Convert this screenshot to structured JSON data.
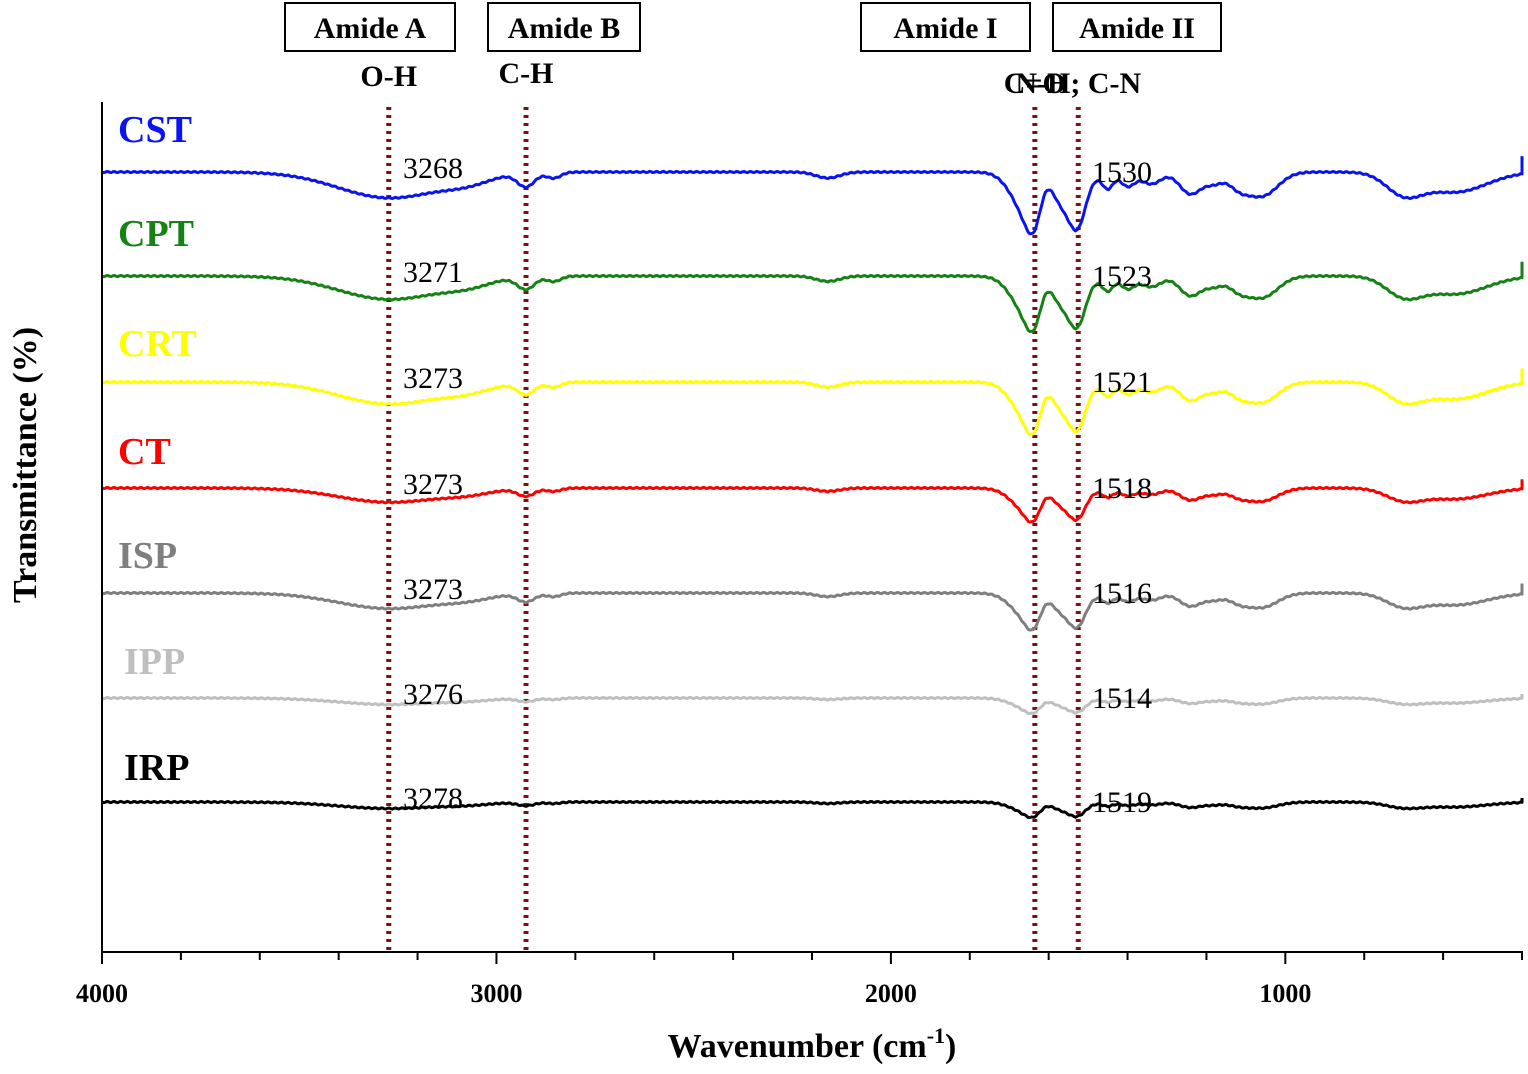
{
  "chart_data": {
    "type": "line",
    "title": "",
    "xlabel": "Wavenumber (cm",
    "xlabel_sup": "-1",
    "xlabel_close": ")",
    "ylabel": "Transmittance (%)",
    "xlim": [
      4000,
      400
    ],
    "x_ticks": [
      {
        "value": 4000,
        "label": "4000"
      },
      {
        "value": 3000,
        "label": "3000"
      },
      {
        "value": 2000,
        "label": "2000"
      },
      {
        "value": 1000,
        "label": "1000"
      }
    ],
    "markers": [
      {
        "value": 3273,
        "box_label": "Amide A",
        "bond_label": "O-H"
      },
      {
        "value": 2925,
        "box_label": "Amide B",
        "bond_label": "C-H"
      },
      {
        "value": 1635,
        "box_label": "Amide I",
        "bond_label": "C=O"
      },
      {
        "value": 1525,
        "box_label": "Amide II",
        "bond_label": "N-H; C-N"
      }
    ],
    "series": [
      {
        "name": "CST",
        "color": "#0a14f0",
        "amide_a_peak": "3268",
        "amide_ii_peak": "1530",
        "scale": 1.0
      },
      {
        "name": "CPT",
        "color": "#168216",
        "amide_a_peak": "3271",
        "amide_ii_peak": "1523",
        "scale": 0.9
      },
      {
        "name": "CRT",
        "color": "#ffff00",
        "amide_a_peak": "3273",
        "amide_ii_peak": "1521",
        "scale": 0.85
      },
      {
        "name": "CT",
        "color": "#ff0000",
        "amide_a_peak": "3273",
        "amide_ii_peak": "1518",
        "scale": 0.55
      },
      {
        "name": "ISP",
        "color": "#7f7f7f",
        "amide_a_peak": "3273",
        "amide_ii_peak": "1516",
        "scale": 0.6
      },
      {
        "name": "IPP",
        "color": "#bfbfbf",
        "amide_a_peak": "3276",
        "amide_ii_peak": "1514",
        "scale": 0.25
      },
      {
        "name": "IRP",
        "color": "#000000",
        "amide_a_peak": "3278",
        "amide_ii_peak": "1519",
        "scale": 0.25
      }
    ],
    "marker_color": "#7b1010"
  }
}
